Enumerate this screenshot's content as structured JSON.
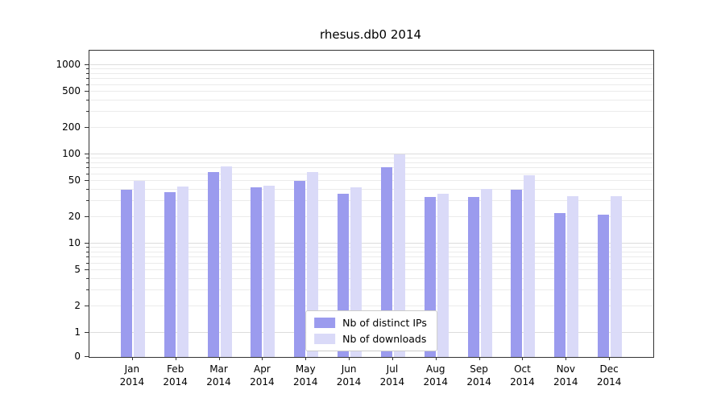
{
  "title": "rhesus.db0 2014",
  "chart_data": {
    "type": "bar",
    "scale": "symlog",
    "title": "rhesus.db0 2014",
    "xlabel": "",
    "ylabel": "",
    "categories": [
      "Jan",
      "Feb",
      "Mar",
      "Apr",
      "May",
      "Jun",
      "Jul",
      "Aug",
      "Sep",
      "Oct",
      "Nov",
      "Dec"
    ],
    "year_label": "2014",
    "series": [
      {
        "name": "Nb of distinct IPs",
        "color": "#9b9bee",
        "values": [
          40,
          38,
          63,
          43,
          51,
          36,
          72,
          33,
          33,
          40,
          22,
          21
        ]
      },
      {
        "name": "Nb of downloads",
        "color": "#dadaf8",
        "values": [
          50,
          44,
          73,
          45,
          63,
          43,
          100,
          36,
          41,
          58,
          34,
          34
        ]
      }
    ],
    "yticks": [
      0,
      1,
      2,
      5,
      10,
      20,
      50,
      100,
      200,
      500,
      1000
    ],
    "ylim": [
      0,
      1200
    ],
    "grid": true,
    "legend_position": "lower center"
  },
  "colors": {
    "axis": "#333333",
    "major_grid": "#dcdcdc",
    "minor_grid": "#ebebeb",
    "legend_border": "#cccccc"
  }
}
